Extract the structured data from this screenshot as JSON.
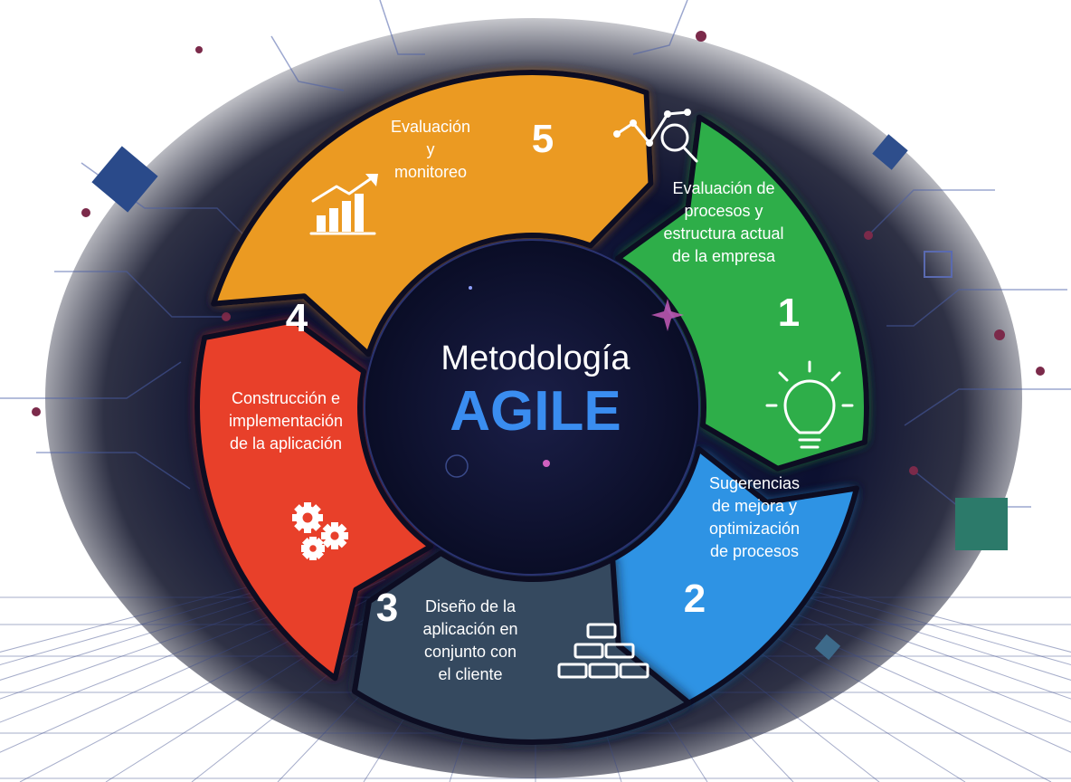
{
  "center": {
    "line1": "Metodología",
    "line2": "AGILE",
    "accent_color": "#3a8df0"
  },
  "segments": [
    {
      "number": "1",
      "label_lines": [
        "Evaluación de",
        "procesos y",
        "estructura actual",
        "de la empresa"
      ],
      "color": "#2eae4a",
      "icon": "analytics-magnifier-icon"
    },
    {
      "number": "2",
      "label_lines": [
        "Sugerencias",
        "de mejora y",
        "optimización",
        "de procesos"
      ],
      "color": "#2f93e4",
      "icon": "lightbulb-icon"
    },
    {
      "number": "3",
      "label_lines": [
        "Diseño de la",
        "aplicación en",
        "conjunto con",
        "el cliente"
      ],
      "color": "#35485f",
      "icon": "building-blocks-icon"
    },
    {
      "number": "4",
      "label_lines": [
        "Construcción e",
        "implementación",
        "de la aplicación"
      ],
      "color": "#e8402c",
      "icon": "gears-icon"
    },
    {
      "number": "5",
      "label_lines": [
        "Evaluación",
        "y",
        "monitoreo"
      ],
      "color": "#eb9a22",
      "icon": "growth-chart-icon"
    }
  ]
}
